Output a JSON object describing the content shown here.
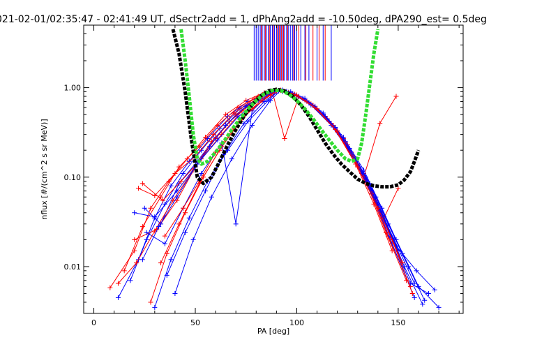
{
  "chart_data": {
    "type": "line",
    "title": "021-02-01/02:35:47 - 02:41:49 UT, dSectr2add = 1, dPhAng2add = -10.50deg, dPA290_est=    0.5deg",
    "xlabel": "PA [deg]",
    "ylabel": "nflux [#/(cm^2 s sr MeV)]",
    "xlim": [
      -5,
      182
    ],
    "ylim": [
      0.003,
      5.0
    ],
    "yscale": "log",
    "grid": false,
    "xticks": [
      {
        "value": 0,
        "label": "0"
      },
      {
        "value": 50,
        "label": "50"
      },
      {
        "value": 100,
        "label": "100"
      },
      {
        "value": 150,
        "label": "150"
      }
    ],
    "yticks": [
      {
        "value": 0.01,
        "label": "0.01"
      },
      {
        "value": 0.1,
        "label": "0.10"
      },
      {
        "value": 1,
        "label": "1.00"
      }
    ],
    "fit_curves": [
      {
        "color": "#000000",
        "style": "dashed-thick",
        "x": [
          39,
          42,
          45,
          48,
          51,
          54,
          58,
          62,
          66,
          70,
          74,
          78,
          82,
          86,
          90,
          94,
          98,
          102,
          106,
          110,
          114,
          118,
          122,
          126,
          130,
          134,
          138,
          142,
          146,
          150,
          153,
          156,
          158,
          160
        ],
        "y": [
          4.5,
          2.4,
          0.9,
          0.27,
          0.1,
          0.085,
          0.1,
          0.15,
          0.23,
          0.34,
          0.48,
          0.64,
          0.8,
          0.92,
          0.96,
          0.92,
          0.8,
          0.64,
          0.48,
          0.34,
          0.24,
          0.18,
          0.14,
          0.115,
          0.095,
          0.085,
          0.08,
          0.078,
          0.078,
          0.082,
          0.093,
          0.115,
          0.15,
          0.2
        ]
      },
      {
        "color": "#33dd33",
        "style": "dashed-thick",
        "x": [
          43,
          45,
          47,
          49,
          51,
          53,
          56,
          60,
          64,
          68,
          72,
          76,
          80,
          84,
          88,
          92,
          96,
          100,
          104,
          108,
          112,
          116,
          120,
          124,
          127,
          130,
          132,
          134,
          136,
          138,
          140
        ],
        "y": [
          4.5,
          2.0,
          0.8,
          0.3,
          0.16,
          0.14,
          0.15,
          0.19,
          0.25,
          0.34,
          0.45,
          0.58,
          0.72,
          0.85,
          0.93,
          0.93,
          0.85,
          0.72,
          0.58,
          0.45,
          0.34,
          0.26,
          0.2,
          0.16,
          0.15,
          0.16,
          0.24,
          0.5,
          1.1,
          2.4,
          4.5
        ]
      }
    ],
    "series": [
      {
        "color": "#ff0000",
        "x": [
          8,
          20,
          28,
          37,
          46,
          55,
          65,
          75,
          84,
          91,
          98,
          107,
          117,
          127,
          136,
          145,
          156
        ],
        "y": [
          0.0058,
          0.015,
          0.045,
          0.09,
          0.16,
          0.28,
          0.5,
          0.72,
          0.88,
          0.93,
          0.85,
          0.66,
          0.4,
          0.19,
          0.075,
          0.022,
          0.006
        ]
      },
      {
        "color": "#0000ff",
        "x": [
          12,
          22,
          30,
          38,
          47,
          56,
          66,
          76,
          85,
          91,
          99,
          108,
          118,
          128,
          137,
          147,
          158
        ],
        "y": [
          0.0045,
          0.012,
          0.035,
          0.08,
          0.15,
          0.27,
          0.48,
          0.7,
          0.86,
          0.92,
          0.84,
          0.63,
          0.37,
          0.17,
          0.065,
          0.018,
          0.0045
        ]
      },
      {
        "color": "#ff0000",
        "x": [
          15,
          24,
          33,
          42,
          52,
          61,
          71,
          81,
          89,
          95,
          103,
          113,
          123,
          133,
          142,
          152
        ],
        "y": [
          0.009,
          0.028,
          0.06,
          0.13,
          0.22,
          0.38,
          0.6,
          0.8,
          0.92,
          0.9,
          0.75,
          0.5,
          0.27,
          0.11,
          0.04,
          0.011
        ]
      },
      {
        "color": "#0000ff",
        "x": [
          18,
          26,
          35,
          44,
          53,
          62,
          72,
          82,
          90,
          96,
          104,
          114,
          124,
          134,
          143,
          153,
          162
        ],
        "y": [
          0.007,
          0.02,
          0.05,
          0.11,
          0.2,
          0.35,
          0.58,
          0.78,
          0.91,
          0.89,
          0.73,
          0.48,
          0.25,
          0.1,
          0.036,
          0.01,
          0.0038
        ]
      },
      {
        "color": "#ff0000",
        "x": [
          22,
          30,
          40,
          50,
          59,
          69,
          79,
          88,
          94,
          101,
          110,
          120,
          130,
          139,
          148
        ],
        "y": [
          0.075,
          0.062,
          0.11,
          0.17,
          0.3,
          0.52,
          0.75,
          0.9,
          0.27,
          0.8,
          0.58,
          0.33,
          0.14,
          0.055,
          0.018
        ]
      },
      {
        "color": "#0000ff",
        "x": [
          25,
          33,
          42,
          51,
          60,
          70,
          80,
          88,
          93,
          100,
          109,
          119,
          129,
          138,
          148,
          158
        ],
        "y": [
          0.045,
          0.03,
          0.085,
          0.15,
          0.28,
          0.5,
          0.74,
          0.9,
          0.9,
          0.82,
          0.6,
          0.35,
          0.15,
          0.06,
          0.02,
          0.0065
        ]
      },
      {
        "color": "#ff0000",
        "x": [
          28,
          36,
          45,
          54,
          63,
          73,
          83,
          90,
          97,
          106,
          116,
          126,
          135,
          144,
          154
        ],
        "y": [
          0.004,
          0.014,
          0.04,
          0.1,
          0.22,
          0.45,
          0.72,
          0.92,
          0.86,
          0.68,
          0.42,
          0.2,
          0.08,
          0.024,
          0.007
        ]
      },
      {
        "color": "#0000ff",
        "x": [
          30,
          38,
          47,
          56,
          66,
          76,
          86,
          91,
          98,
          107,
          117,
          127,
          137,
          146,
          156,
          165
        ],
        "y": [
          0.0035,
          0.012,
          0.035,
          0.09,
          0.2,
          0.42,
          0.72,
          0.93,
          0.85,
          0.64,
          0.38,
          0.18,
          0.07,
          0.022,
          0.0065,
          0.005
        ]
      },
      {
        "color": "#ff0000",
        "x": [
          20,
          31,
          41,
          50,
          60,
          70,
          80,
          89,
          96,
          105,
          115,
          125,
          134,
          143,
          150
        ],
        "y": [
          0.02,
          0.026,
          0.055,
          0.13,
          0.27,
          0.5,
          0.75,
          0.93,
          0.88,
          0.7,
          0.45,
          0.23,
          0.095,
          0.035,
          0.075
        ]
      },
      {
        "color": "#0000ff",
        "x": [
          26,
          35,
          44,
          53,
          63,
          70,
          78,
          87,
          93,
          101,
          111,
          121,
          131,
          140,
          149,
          159,
          168
        ],
        "y": [
          0.024,
          0.018,
          0.045,
          0.11,
          0.24,
          0.03,
          0.55,
          0.88,
          0.94,
          0.8,
          0.55,
          0.3,
          0.13,
          0.05,
          0.017,
          0.009,
          0.0055
        ]
      },
      {
        "color": "#ff0000",
        "x": [
          33,
          42,
          52,
          62,
          72,
          82,
          90,
          96,
          104,
          114,
          124,
          133,
          141,
          149
        ],
        "y": [
          0.011,
          0.03,
          0.085,
          0.2,
          0.42,
          0.72,
          0.92,
          0.88,
          0.73,
          0.47,
          0.24,
          0.1,
          0.4,
          0.8
        ]
      },
      {
        "color": "#0000ff",
        "x": [
          36,
          45,
          55,
          64,
          74,
          84,
          91,
          97,
          106,
          116,
          126,
          136,
          145,
          155
        ],
        "y": [
          0.008,
          0.024,
          0.07,
          0.18,
          0.4,
          0.7,
          0.92,
          0.87,
          0.68,
          0.42,
          0.21,
          0.085,
          0.03,
          0.01
        ]
      },
      {
        "color": "#ff0000",
        "x": [
          24,
          34,
          43,
          53,
          63,
          73,
          83,
          90,
          98,
          108,
          118,
          128,
          137,
          147,
          157
        ],
        "y": [
          0.085,
          0.055,
          0.09,
          0.16,
          0.3,
          0.55,
          0.8,
          0.94,
          0.86,
          0.64,
          0.38,
          0.17,
          0.065,
          0.02,
          0.005
        ]
      },
      {
        "color": "#0000ff",
        "x": [
          40,
          49,
          58,
          68,
          78,
          87,
          92,
          99,
          109,
          119,
          129,
          139,
          149,
          160,
          170
        ],
        "y": [
          0.005,
          0.02,
          0.06,
          0.16,
          0.38,
          0.72,
          0.93,
          0.84,
          0.62,
          0.36,
          0.16,
          0.06,
          0.02,
          0.006,
          0.0035
        ]
      },
      {
        "color": "#0000ff",
        "x": [
          20,
          30,
          41,
          51,
          61,
          71,
          81,
          89,
          95,
          103,
          113,
          123,
          132,
          141,
          150
        ],
        "y": [
          0.04,
          0.036,
          0.07,
          0.14,
          0.26,
          0.47,
          0.72,
          0.9,
          0.91,
          0.76,
          0.5,
          0.26,
          0.11,
          0.042,
          0.015
        ]
      },
      {
        "color": "#ff0000",
        "x": [
          12,
          21,
          30,
          39,
          49,
          58,
          67,
          77,
          86,
          92,
          99,
          109,
          119,
          129,
          138,
          147
        ],
        "y": [
          0.0065,
          0.011,
          0.025,
          0.055,
          0.12,
          0.25,
          0.42,
          0.65,
          0.86,
          0.93,
          0.84,
          0.6,
          0.34,
          0.14,
          0.05,
          0.015
        ]
      },
      {
        "color": "#0000ff",
        "x": [
          24,
          32,
          41,
          50,
          57,
          65,
          75,
          85,
          91,
          97,
          104,
          113,
          123,
          133,
          142,
          152,
          163
        ],
        "y": [
          0.012,
          0.028,
          0.06,
          0.13,
          0.22,
          0.38,
          0.62,
          0.85,
          0.93,
          0.9,
          0.76,
          0.52,
          0.28,
          0.12,
          0.045,
          0.014,
          0.0042
        ]
      },
      {
        "color": "#ff0000",
        "x": [
          35,
          44,
          52,
          60,
          69,
          78,
          87,
          92,
          100,
          110,
          120,
          130,
          140,
          152
        ],
        "y": [
          0.022,
          0.045,
          0.09,
          0.19,
          0.35,
          0.58,
          0.82,
          0.94,
          0.83,
          0.58,
          0.32,
          0.13,
          0.045,
          0.011
        ]
      }
    ],
    "vlines": [
      {
        "color": "#0000ff",
        "x": [
          79,
          80,
          81,
          82,
          83,
          84,
          85,
          86,
          87,
          88,
          89,
          90,
          91,
          92,
          93,
          94,
          95,
          96,
          97,
          98,
          99,
          100,
          102,
          104,
          106,
          110,
          113,
          117
        ]
      },
      {
        "color": "#ff0000",
        "x": [
          82.5,
          84.5,
          86.5,
          88.5,
          90.5,
          91.5,
          92.5,
          93.5,
          95.5,
          98.5,
          101,
          104.5,
          108,
          111,
          114
        ]
      }
    ]
  }
}
